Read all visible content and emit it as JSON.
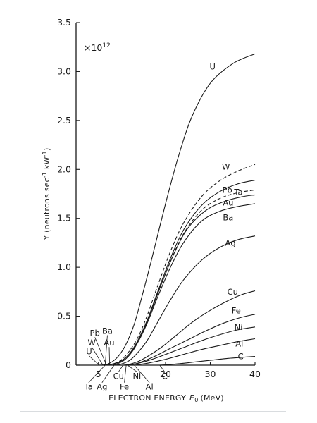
{
  "chart_data": {
    "type": "line",
    "title": "",
    "multiplier": "×10",
    "multiplier_exp": "12",
    "xlabel": "ELECTRON ENERGY",
    "xlabel_symbol": "E",
    "xlabel_sub": "0",
    "xlabel_unit": "(MeV)",
    "ylabel": "Y (neutrons sec",
    "ylabel_sup1": "-1",
    "ylabel_mid": " kW",
    "ylabel_sup2": "-1",
    "ylabel_end": ")",
    "xlim": [
      0,
      40
    ],
    "ylim": [
      0,
      3.5
    ],
    "x_ticks": [
      5,
      20,
      30,
      40
    ],
    "x_tick_labels": [
      "5",
      "20",
      "30",
      "40"
    ],
    "y_ticks": [
      0,
      0.5,
      1.0,
      1.5,
      2.0,
      2.5,
      3.0,
      3.5
    ],
    "y_tick_labels": [
      "0",
      "0.5",
      "1.0",
      "1.5",
      "2.0",
      "2.5",
      "3.0",
      "3.5"
    ],
    "grid": false,
    "legend": "none (curves labeled directly)",
    "series": [
      {
        "name": "U",
        "style": "solid",
        "x": [
          5.2,
          7,
          9,
          11,
          13,
          15,
          17,
          20,
          23,
          26,
          30,
          35,
          40
        ],
        "y": [
          0,
          0.01,
          0.07,
          0.2,
          0.42,
          0.75,
          1.1,
          1.65,
          2.15,
          2.55,
          2.88,
          3.08,
          3.18
        ]
      },
      {
        "name": "W",
        "style": "dashed",
        "x": [
          6.0,
          8,
          10,
          12,
          14,
          16,
          18,
          21,
          24,
          28,
          32,
          36,
          40
        ],
        "y": [
          0,
          0.01,
          0.05,
          0.15,
          0.3,
          0.52,
          0.78,
          1.15,
          1.45,
          1.72,
          1.88,
          1.98,
          2.05
        ]
      },
      {
        "name": "Pb",
        "style": "solid",
        "x": [
          6.8,
          8,
          10,
          12,
          14,
          16,
          18,
          21,
          24,
          28,
          32,
          36,
          40
        ],
        "y": [
          0,
          0.01,
          0.04,
          0.12,
          0.27,
          0.47,
          0.72,
          1.08,
          1.38,
          1.63,
          1.77,
          1.85,
          1.89
        ]
      },
      {
        "name": "Ta",
        "style": "dashed",
        "x": [
          6.5,
          8,
          10,
          12,
          14,
          16,
          18,
          21,
          24,
          28,
          32,
          36,
          40
        ],
        "y": [
          0,
          0.01,
          0.04,
          0.12,
          0.26,
          0.46,
          0.7,
          1.05,
          1.34,
          1.58,
          1.7,
          1.76,
          1.79
        ]
      },
      {
        "name": "Au",
        "style": "solid",
        "x": [
          7.5,
          9,
          11,
          13,
          15,
          17,
          19,
          22,
          25,
          29,
          33,
          37,
          40
        ],
        "y": [
          0,
          0.01,
          0.06,
          0.17,
          0.35,
          0.58,
          0.82,
          1.15,
          1.4,
          1.58,
          1.67,
          1.72,
          1.74
        ]
      },
      {
        "name": "Ba",
        "style": "solid",
        "x": [
          6.5,
          8,
          10,
          12,
          14,
          16,
          18,
          21,
          24,
          28,
          32,
          36,
          40
        ],
        "y": [
          0,
          0.01,
          0.04,
          0.12,
          0.25,
          0.44,
          0.67,
          0.99,
          1.25,
          1.47,
          1.57,
          1.62,
          1.65
        ]
      },
      {
        "name": "Ag",
        "style": "solid",
        "x": [
          8.5,
          10,
          12,
          14,
          16,
          18,
          21,
          24,
          28,
          32,
          36,
          40
        ],
        "y": [
          0,
          0.01,
          0.05,
          0.14,
          0.26,
          0.42,
          0.66,
          0.87,
          1.07,
          1.2,
          1.28,
          1.32
        ]
      },
      {
        "name": "Cu",
        "style": "solid",
        "x": [
          10.5,
          12,
          14,
          16,
          19,
          22,
          26,
          30,
          34,
          37,
          40
        ],
        "y": [
          0,
          0.01,
          0.04,
          0.09,
          0.18,
          0.29,
          0.44,
          0.56,
          0.66,
          0.72,
          0.76
        ]
      },
      {
        "name": "Fe",
        "style": "solid",
        "x": [
          11.2,
          13,
          15,
          18,
          21,
          25,
          29,
          33,
          37,
          40
        ],
        "y": [
          0,
          0.01,
          0.04,
          0.1,
          0.17,
          0.26,
          0.35,
          0.43,
          0.49,
          0.52
        ]
      },
      {
        "name": "Ni",
        "style": "solid",
        "x": [
          11.5,
          14,
          17,
          20,
          24,
          28,
          32,
          36,
          40
        ],
        "y": [
          0,
          0.02,
          0.06,
          0.11,
          0.18,
          0.25,
          0.31,
          0.36,
          0.39
        ]
      },
      {
        "name": "Al",
        "style": "solid",
        "x": [
          13.0,
          16,
          20,
          24,
          28,
          32,
          36,
          40
        ],
        "y": [
          0,
          0.02,
          0.06,
          0.11,
          0.16,
          0.2,
          0.24,
          0.27
        ]
      },
      {
        "name": "C",
        "style": "solid",
        "x": [
          18.7,
          22,
          26,
          30,
          34,
          37,
          40
        ],
        "y": [
          0,
          0.01,
          0.03,
          0.05,
          0.07,
          0.08,
          0.09
        ]
      }
    ],
    "curve_labels": [
      {
        "text": "U",
        "x": 30.5,
        "y": 3.02
      },
      {
        "text": "W",
        "x": 33.5,
        "y": 2.0
      },
      {
        "text": "Pb",
        "x": 33.8,
        "y": 1.76
      },
      {
        "text": "Ta",
        "x": 36.3,
        "y": 1.74
      },
      {
        "text": "Au",
        "x": 34.0,
        "y": 1.63
      },
      {
        "text": "Ba",
        "x": 34.0,
        "y": 1.48
      },
      {
        "text": "Ag",
        "x": 34.5,
        "y": 1.22
      },
      {
        "text": "Cu",
        "x": 35.0,
        "y": 0.72
      },
      {
        "text": "Fe",
        "x": 35.8,
        "y": 0.53
      },
      {
        "text": "Ni",
        "x": 36.3,
        "y": 0.36
      },
      {
        "text": "Al",
        "x": 36.5,
        "y": 0.19
      },
      {
        "text": "C",
        "x": 36.8,
        "y": 0.06
      }
    ],
    "threshold_labels_above": [
      {
        "text": "U",
        "x": 2.9,
        "y": 0.11
      },
      {
        "text": "W",
        "x": 3.5,
        "y": 0.2
      },
      {
        "text": "Pb",
        "x": 4.2,
        "y": 0.3
      },
      {
        "text": "Ba",
        "x": 7.0,
        "y": 0.32
      },
      {
        "text": "Au",
        "x": 7.4,
        "y": 0.2
      }
    ],
    "threshold_labels_below": [
      {
        "text": "Ta",
        "x": 2.8,
        "y": -0.25
      },
      {
        "text": "Ag",
        "x": 5.8,
        "y": -0.25
      },
      {
        "text": "Cu",
        "x": 9.5,
        "y": -0.14
      },
      {
        "text": "Fe",
        "x": 10.8,
        "y": -0.25
      },
      {
        "text": "Ni",
        "x": 13.6,
        "y": -0.14
      },
      {
        "text": "Al",
        "x": 16.4,
        "y": -0.25
      },
      {
        "text": "C",
        "x": 19.8,
        "y": -0.14
      }
    ]
  }
}
